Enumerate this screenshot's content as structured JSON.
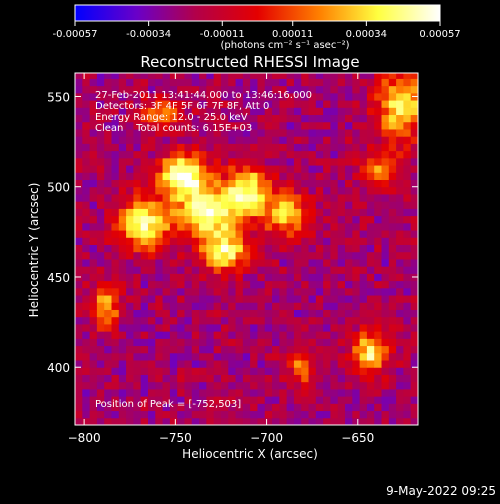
{
  "chart_data": {
    "type": "heatmap",
    "title": "Reconstructed RHESSI Image",
    "xlabel": "Heliocentric X (arcsec)",
    "ylabel": "Heliocentric Y (arcsec)",
    "xlim": [
      -805,
      -617
    ],
    "ylim": [
      368,
      563
    ],
    "x_ticks": [
      -800,
      -750,
      -700,
      -650
    ],
    "y_ticks": [
      400,
      450,
      500,
      550
    ],
    "colorbar": {
      "range": [
        -0.00057,
        0.00057
      ],
      "tick_values": [
        -0.00057,
        -0.00034,
        -0.00011,
        0.00011,
        0.00034,
        0.00057
      ],
      "tick_labels": [
        "-0.00057",
        "-0.00034",
        "-0.00011",
        "0.00011",
        "0.00034",
        "0.00057"
      ],
      "units_label": "(photons cm⁻² s⁻¹ asec⁻²)",
      "colors": [
        "#0000ff",
        "#6a00c8",
        "#b2004a",
        "#e40000",
        "#ff8000",
        "#ffff40",
        "#ffffff"
      ]
    },
    "annotations": [
      "27-Feb-2011 13:41:44.000 to 13:46:16.000",
      "Detectors: 3F 4F 5F 6F 7F 8F, Att 0",
      "Energy Range: 12.0 - 25.0 keV",
      "Clean    Total counts: 6.15E+03"
    ],
    "peak_label": "Position of Peak = [-752,503]",
    "peak": [
      -752,
      503
    ],
    "sources": [
      {
        "x": -748,
        "y": 505,
        "intensity": 0.00057,
        "sx": 9,
        "sy": 8
      },
      {
        "x": -735,
        "y": 485,
        "intensity": 0.0005,
        "sx": 12,
        "sy": 10
      },
      {
        "x": -770,
        "y": 478,
        "intensity": 0.00044,
        "sx": 10,
        "sy": 10
      },
      {
        "x": -712,
        "y": 495,
        "intensity": 0.00044,
        "sx": 9,
        "sy": 10
      },
      {
        "x": -725,
        "y": 462,
        "intensity": 0.00042,
        "sx": 9,
        "sy": 8
      },
      {
        "x": -690,
        "y": 483,
        "intensity": 0.00032,
        "sx": 8,
        "sy": 9
      },
      {
        "x": -628,
        "y": 543,
        "intensity": 0.0004,
        "sx": 10,
        "sy": 13
      },
      {
        "x": -640,
        "y": 507,
        "intensity": 0.00022,
        "sx": 8,
        "sy": 7
      },
      {
        "x": -645,
        "y": 406,
        "intensity": 0.0004,
        "sx": 7,
        "sy": 8
      },
      {
        "x": -683,
        "y": 398,
        "intensity": 0.0002,
        "sx": 5,
        "sy": 6
      },
      {
        "x": -790,
        "y": 432,
        "intensity": 0.0003,
        "sx": 5,
        "sy": 9
      },
      {
        "x": -760,
        "y": 538,
        "intensity": 0.00018,
        "sx": 9,
        "sy": 6
      }
    ],
    "grid": false
  },
  "footer": {
    "timestamp": "9-May-2022 09:25"
  }
}
